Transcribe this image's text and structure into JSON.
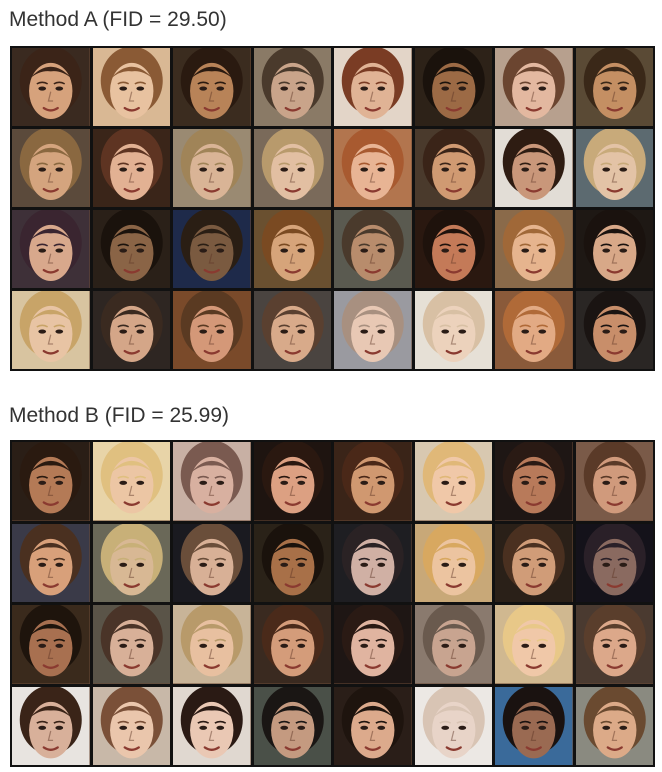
{
  "method_a": {
    "title": "Method A (FID = 29.50)",
    "rows": 4,
    "cols": 8,
    "tiles": [
      {
        "bg": "#3a2a20",
        "skin": "#d6a27c",
        "hair": "#3b2418"
      },
      {
        "bg": "#d9b894",
        "skin": "#e8c2a0",
        "hair": "#8a5a35"
      },
      {
        "bg": "#3b2c1f",
        "skin": "#b88358",
        "hair": "#2a1a10"
      },
      {
        "bg": "#8a7a66",
        "skin": "#c9a48a",
        "hair": "#4a3a2c"
      },
      {
        "bg": "#e3d5c8",
        "skin": "#e0b395",
        "hair": "#7a3c24"
      },
      {
        "bg": "#2d2218",
        "skin": "#9c6a45",
        "hair": "#1a120c"
      },
      {
        "bg": "#b7a08e",
        "skin": "#e3b8a0",
        "hair": "#6b4530"
      },
      {
        "bg": "#5a4a35",
        "skin": "#c48f63",
        "hair": "#3a2818"
      },
      {
        "bg": "#5b4a3b",
        "skin": "#d4a47e",
        "hair": "#8a6840"
      },
      {
        "bg": "#3a2519",
        "skin": "#e2b193",
        "hair": "#5e3422"
      },
      {
        "bg": "#9a8a72",
        "skin": "#d9b496",
        "hair": "#a08458"
      },
      {
        "bg": "#7a6a5a",
        "skin": "#e2bfa2",
        "hair": "#b89a6c"
      },
      {
        "bg": "#b2754e",
        "skin": "#e8b494",
        "hair": "#a85a30"
      },
      {
        "bg": "#4a3a2c",
        "skin": "#d09a72",
        "hair": "#3a2418"
      },
      {
        "bg": "#e2ddd6",
        "skin": "#c9977a",
        "hair": "#2e1c12"
      },
      {
        "bg": "#5c6a70",
        "skin": "#e3c3a6",
        "hair": "#c8aa7a"
      },
      {
        "bg": "#3e3038",
        "skin": "#d8a88c",
        "hair": "#3a2530"
      },
      {
        "bg": "#2a2018",
        "skin": "#8a6446",
        "hair": "#1a120c"
      },
      {
        "bg": "#1e2a4a",
        "skin": "#7a5a40",
        "hair": "#2a1e14"
      },
      {
        "bg": "#6a5030",
        "skin": "#d6a47a",
        "hair": "#7a4a22"
      },
      {
        "bg": "#5a5a50",
        "skin": "#b88c6c",
        "hair": "#4a3a2c"
      },
      {
        "bg": "#2a1810",
        "skin": "#c47a58",
        "hair": "#1e120c"
      },
      {
        "bg": "#8a6a4a",
        "skin": "#e6b48e",
        "hair": "#a06838"
      },
      {
        "bg": "#1e1814",
        "skin": "#d8a888",
        "hair": "#1a120e"
      },
      {
        "bg": "#d8c4a0",
        "skin": "#e8c4a4",
        "hair": "#c8a468"
      },
      {
        "bg": "#2e2622",
        "skin": "#d4a688",
        "hair": "#3a2a20"
      },
      {
        "bg": "#7a4a2a",
        "skin": "#d49878",
        "hair": "#5a3a22"
      },
      {
        "bg": "#4a4440",
        "skin": "#d8aa8a",
        "hair": "#5a4030"
      },
      {
        "bg": "#9a9aa0",
        "skin": "#e8c8b4",
        "hair": "#a89080"
      },
      {
        "bg": "#e6e0d6",
        "skin": "#ecd2bc",
        "hair": "#d8c0a4"
      },
      {
        "bg": "#8a5a3a",
        "skin": "#e2aa84",
        "hair": "#b06a38"
      },
      {
        "bg": "#2a2624",
        "skin": "#c88e6a",
        "hair": "#1a1412"
      }
    ]
  },
  "method_b": {
    "title": "Method B (FID = 25.99)",
    "rows": 4,
    "cols": 8,
    "tiles": [
      {
        "bg": "#2a1e16",
        "skin": "#b47a56",
        "hair": "#2a1a10"
      },
      {
        "bg": "#e8d4a8",
        "skin": "#ecc6a4",
        "hair": "#e0c080"
      },
      {
        "bg": "#c8b0a4",
        "skin": "#d8b0a0",
        "hair": "#7a5a50"
      },
      {
        "bg": "#1e1410",
        "skin": "#dca082",
        "hair": "#2a1810"
      },
      {
        "bg": "#3a2418",
        "skin": "#d09870",
        "hair": "#4a2818"
      },
      {
        "bg": "#d8c8b0",
        "skin": "#f0c8a8",
        "hair": "#e0b878"
      },
      {
        "bg": "#1e1614",
        "skin": "#b87a5a",
        "hair": "#2a1a14"
      },
      {
        "bg": "#7a5a48",
        "skin": "#d09a7c",
        "hair": "#5a3a28"
      },
      {
        "bg": "#3a3a48",
        "skin": "#d8a07a",
        "hair": "#4a3020"
      },
      {
        "bg": "#6a6858",
        "skin": "#d8b894",
        "hair": "#c8b078"
      },
      {
        "bg": "#1a1a20",
        "skin": "#d8b096",
        "hair": "#6a4e3a"
      },
      {
        "bg": "#2a2218",
        "skin": "#a87048",
        "hair": "#1a120c"
      },
      {
        "bg": "#1e1e22",
        "skin": "#d0b0a4",
        "hair": "#2a2224"
      },
      {
        "bg": "#c8a878",
        "skin": "#ecc4a0",
        "hair": "#d8a860"
      },
      {
        "bg": "#2a2018",
        "skin": "#d09c78",
        "hair": "#4a3020"
      },
      {
        "bg": "#14121a",
        "skin": "#8a6a60",
        "hair": "#2a2028"
      },
      {
        "bg": "#3a2a1c",
        "skin": "#a87050",
        "hair": "#1e140c"
      },
      {
        "bg": "#5a5448",
        "skin": "#d8b098",
        "hair": "#4a3428"
      },
      {
        "bg": "#c8b498",
        "skin": "#e8c0a0",
        "hair": "#b89a6a"
      },
      {
        "bg": "#3a2a20",
        "skin": "#d49c7a",
        "hair": "#4a2a1a"
      },
      {
        "bg": "#1e1614",
        "skin": "#e0b4a0",
        "hair": "#2a1a14"
      },
      {
        "bg": "#8a7a6e",
        "skin": "#c8a490",
        "hair": "#6a5a4e"
      },
      {
        "bg": "#d0b890",
        "skin": "#f0c8a8",
        "hair": "#e8c888"
      },
      {
        "bg": "#4a3a30",
        "skin": "#dca88a",
        "hair": "#5a3e2c"
      },
      {
        "bg": "#e8e4e0",
        "skin": "#d8b09a",
        "hair": "#3a2418"
      },
      {
        "bg": "#c8b8a8",
        "skin": "#eac6ac",
        "hair": "#7a5038"
      },
      {
        "bg": "#e0d8d0",
        "skin": "#eac8b4",
        "hair": "#2a1a14"
      },
      {
        "bg": "#4a5048",
        "skin": "#c49a80",
        "hair": "#1a1614"
      },
      {
        "bg": "#2a1e18",
        "skin": "#dcaa8c",
        "hair": "#1e140e"
      },
      {
        "bg": "#ece8e4",
        "skin": "#e8d4c8",
        "hair": "#d8c4b4"
      },
      {
        "bg": "#3a6a9a",
        "skin": "#9a6a52",
        "hair": "#1a1210"
      },
      {
        "bg": "#8a8a80",
        "skin": "#dcaa88",
        "hair": "#6a4a30"
      }
    ]
  }
}
